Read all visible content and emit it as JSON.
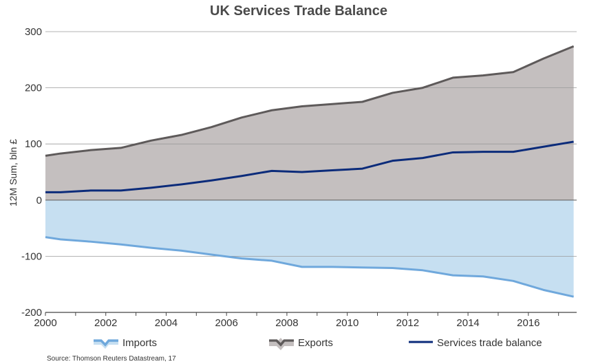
{
  "chart_data": {
    "type": "area",
    "title": "UK Services Trade Balance",
    "ylabel": "12M Sum, bln £",
    "xlabel": "",
    "source": "Source: Thomson Reuters Datastream, 17",
    "xlim": [
      2000,
      2017.6
    ],
    "ylim": [
      -200,
      300
    ],
    "yticks": [
      -200,
      -100,
      0,
      100,
      200,
      300
    ],
    "ytick_labels": [
      "-200",
      "-100",
      "0",
      "100",
      "200",
      "300"
    ],
    "xticks": [
      2000,
      2002,
      2004,
      2006,
      2008,
      2010,
      2012,
      2014,
      2016
    ],
    "xtick_labels": [
      "2000",
      "2002",
      "2004",
      "2006",
      "2008",
      "2010",
      "2012",
      "2014",
      "2016"
    ],
    "grid": true,
    "legend_position": "bottom",
    "x": [
      2000,
      2000.5,
      2001.5,
      2002.5,
      2003.5,
      2004.5,
      2005.5,
      2006.5,
      2007.5,
      2008.5,
      2009.5,
      2010.5,
      2011.5,
      2012.5,
      2013.5,
      2014.5,
      2015.5,
      2016.5,
      2017.5
    ],
    "series": [
      {
        "name": "Imports",
        "color": "#6fa8dc",
        "fill": "#c6dff1",
        "values": [
          -66,
          -70,
          -74,
          -79,
          -85,
          -90,
          -97,
          -104,
          -108,
          -119,
          -119,
          -120,
          -121,
          -125,
          -134,
          -136,
          -144,
          -160,
          -172
        ]
      },
      {
        "name": "Exports",
        "color": "#5e5a5a",
        "fill": "#c4bfbf",
        "values": [
          79,
          83,
          89,
          93,
          106,
          116,
          130,
          147,
          160,
          167,
          171,
          175,
          191,
          200,
          218,
          222,
          228,
          252,
          274
        ]
      },
      {
        "name": "Services trade balance",
        "color": "#0b2b7a",
        "fill": "none",
        "values": [
          14,
          14,
          17,
          17,
          22,
          28,
          35,
          43,
          52,
          50,
          53,
          56,
          70,
          75,
          85,
          86,
          86,
          95,
          104
        ]
      }
    ]
  }
}
